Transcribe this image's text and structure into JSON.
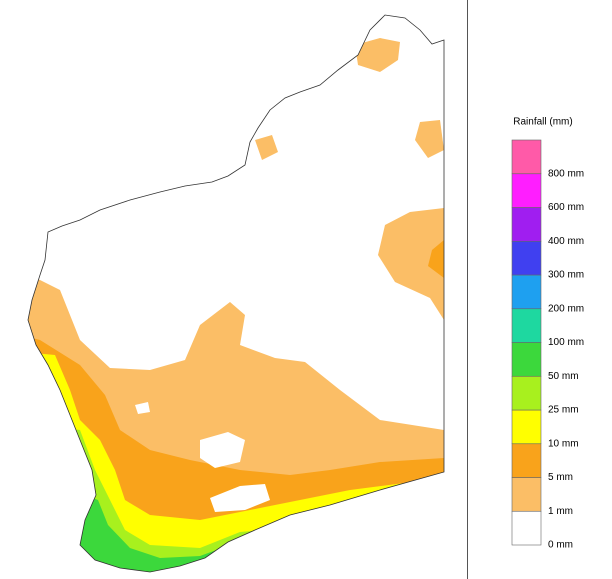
{
  "legend": {
    "title": "Rainfall (mm)",
    "bins": [
      {
        "label": "0 mm",
        "color": "#ffffff"
      },
      {
        "label": "1 mm",
        "color": "#fbbe66"
      },
      {
        "label": "5 mm",
        "color": "#f9a31b"
      },
      {
        "label": "10 mm",
        "color": "#ffff00"
      },
      {
        "label": "25 mm",
        "color": "#a8f01e"
      },
      {
        "label": "50 mm",
        "color": "#3cd83c"
      },
      {
        "label": "100 mm",
        "color": "#1ed8a0"
      },
      {
        "label": "200 mm",
        "color": "#1ea0f0"
      },
      {
        "label": "300 mm",
        "color": "#4040f0"
      },
      {
        "label": "400 mm",
        "color": "#a01ef0"
      },
      {
        "label": "600 mm",
        "color": "#ff1eff"
      },
      {
        "label": "800 mm",
        "color": "#ff5aa8"
      }
    ]
  }
}
